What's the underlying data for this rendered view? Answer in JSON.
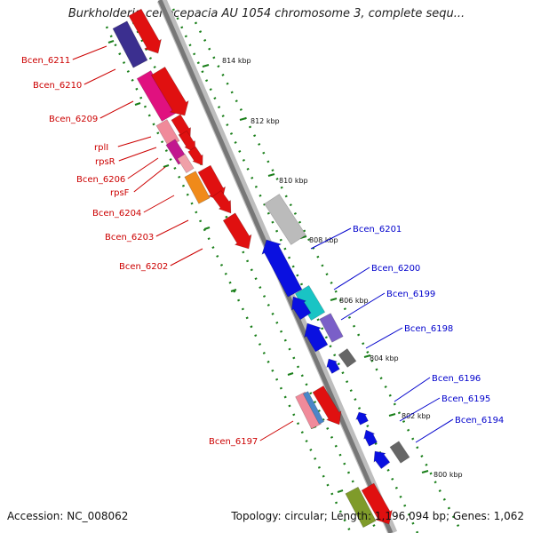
{
  "title": "Burkholderia cenocepacia AU 1054 chromosome 3, complete sequ...",
  "footer": {
    "accession": "Accession: NC_008062",
    "stats": "Topology: circular; Length: 1,196,094 bp; Genes: 1,062"
  },
  "colors": {
    "forward_label": "#cc0000",
    "reverse_label": "#0000cc",
    "backbone": "#777777",
    "tick": "#1a7f1a"
  },
  "positions": [
    "814 kbp",
    "812 kbp",
    "810 kbp",
    "808 kbp",
    "806 kbp",
    "804 kbp",
    "802 kbp",
    "800 kbp"
  ],
  "left_labels": [
    "Bcen_6211",
    "Bcen_6210",
    "Bcen_6209",
    "rplI",
    "rpsR",
    "Bcen_6206",
    "rpsF",
    "Bcen_6204",
    "Bcen_6203",
    "Bcen_6202",
    "Bcen_6197"
  ],
  "right_labels": [
    "Bcen_6201",
    "Bcen_6200",
    "Bcen_6199",
    "Bcen_6198",
    "Bcen_6196",
    "Bcen_6195",
    "Bcen_6194"
  ]
}
